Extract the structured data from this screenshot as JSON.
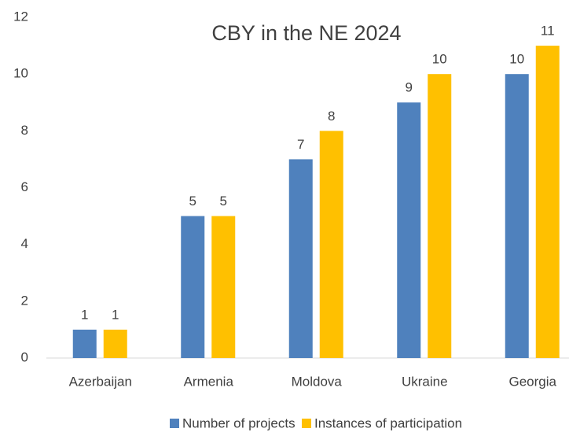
{
  "chart_data": {
    "type": "bar",
    "title": "CBY in the NE 2024",
    "categories": [
      "Azerbaijan",
      "Armenia",
      "Moldova",
      "Ukraine",
      "Georgia"
    ],
    "series": [
      {
        "name": "Number of projects",
        "color": "#4f81bd",
        "values": [
          1,
          5,
          7,
          9,
          10
        ]
      },
      {
        "name": "Instances of participation",
        "color": "#ffc000",
        "values": [
          1,
          5,
          8,
          10,
          11
        ]
      }
    ],
    "ylim": [
      0,
      12
    ],
    "yticks": [
      0,
      2,
      4,
      6,
      8,
      10,
      12
    ],
    "grid": false,
    "legend": "bottom"
  }
}
